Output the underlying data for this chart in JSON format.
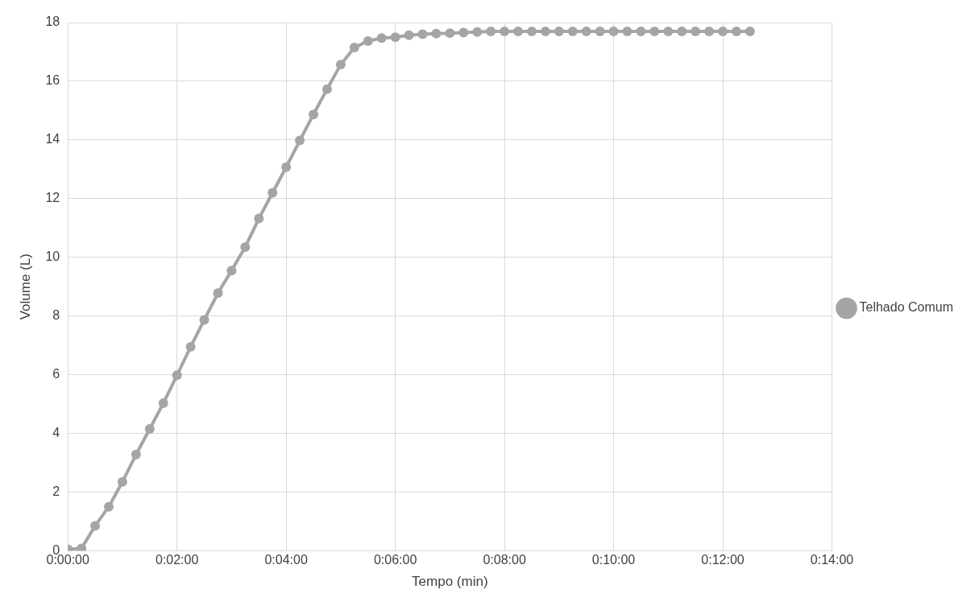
{
  "chart_data": {
    "type": "line",
    "xlabel": "Tempo (min)",
    "ylabel": "Volume (L)",
    "x": [
      0,
      0.25,
      0.5,
      0.75,
      1,
      1.25,
      1.5,
      1.75,
      2,
      2.25,
      2.5,
      2.75,
      3,
      3.25,
      3.5,
      3.75,
      4,
      4.25,
      4.5,
      4.75,
      5,
      5.25,
      5.5,
      5.75,
      6,
      6.25,
      6.5,
      6.75,
      7,
      7.25,
      7.5,
      7.75,
      8,
      8.25,
      8.5,
      8.75,
      9,
      9.25,
      9.5,
      9.75,
      10,
      10.25,
      10.5,
      10.75,
      11,
      11.25,
      11.5,
      11.75,
      12,
      12.25,
      12.5
    ],
    "series": [
      {
        "name": "Telhado Comum",
        "color": "#a5a5a5",
        "values": [
          0.05,
          0.08,
          0.85,
          1.5,
          2.35,
          3.28,
          4.15,
          5.03,
          5.98,
          6.95,
          7.87,
          8.78,
          9.55,
          10.35,
          11.32,
          12.2,
          13.07,
          13.98,
          14.87,
          15.73,
          16.57,
          17.15,
          17.37,
          17.47,
          17.5,
          17.57,
          17.6,
          17.62,
          17.64,
          17.66,
          17.68,
          17.7,
          17.7,
          17.7,
          17.7,
          17.7,
          17.7,
          17.7,
          17.7,
          17.7,
          17.7,
          17.7,
          17.7,
          17.7,
          17.7,
          17.7,
          17.7,
          17.7,
          17.7,
          17.7,
          17.7
        ]
      }
    ],
    "xlim": [
      0,
      14
    ],
    "xticks": [
      {
        "value": 0,
        "label": "0:00:00"
      },
      {
        "value": 2,
        "label": "0:02:00"
      },
      {
        "value": 4,
        "label": "0:04:00"
      },
      {
        "value": 6,
        "label": "0:06:00"
      },
      {
        "value": 8,
        "label": "0:08:00"
      },
      {
        "value": 10,
        "label": "0:10:00"
      },
      {
        "value": 12,
        "label": "0:12:00"
      },
      {
        "value": 14,
        "label": "0:14:00"
      }
    ],
    "ylim": [
      0,
      18
    ],
    "yticks": [
      0,
      2,
      4,
      6,
      8,
      10,
      12,
      14,
      16,
      18
    ],
    "grid": true,
    "legend": "right",
    "marker": "circle",
    "line_style": "solid"
  }
}
